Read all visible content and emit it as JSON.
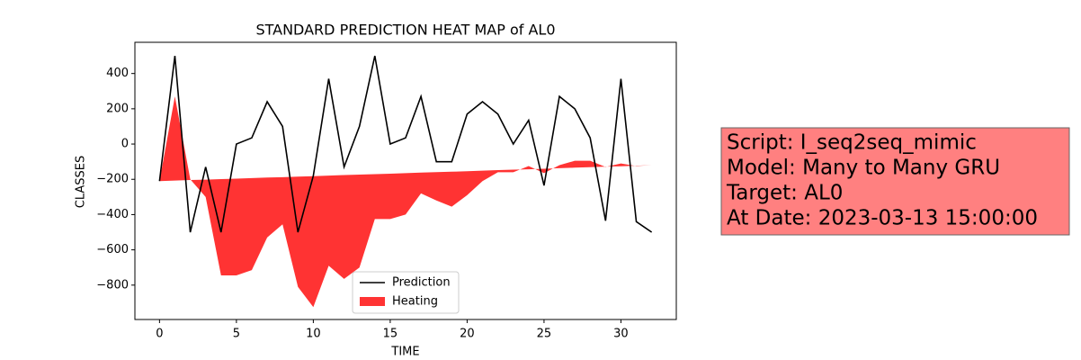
{
  "chart_data": {
    "type": "line-area",
    "title": "STANDARD PREDICTION HEAT MAP of AL0",
    "xlabel": "TIME",
    "ylabel": "CLASSES",
    "x": [
      0,
      1,
      2,
      3,
      4,
      5,
      6,
      7,
      8,
      9,
      10,
      11,
      12,
      13,
      14,
      15,
      16,
      17,
      18,
      19,
      20,
      21,
      22,
      23,
      24,
      25,
      26,
      27,
      28,
      29,
      30,
      31,
      32
    ],
    "series": [
      {
        "name": "Prediction",
        "color": "#000000",
        "kind": "line",
        "values": [
          -210,
          500,
          -500,
          -130,
          -500,
          0,
          35,
          240,
          100,
          -500,
          -180,
          370,
          -130,
          100,
          500,
          0,
          35,
          270,
          -100,
          -100,
          170,
          240,
          170,
          0,
          135,
          -235,
          270,
          200,
          35,
          -435,
          370,
          -440,
          -500
        ]
      },
      {
        "name": "Heating",
        "color": "#ff0000",
        "kind": "area",
        "values": [
          -210,
          270,
          -200,
          -300,
          -745,
          -745,
          -715,
          -530,
          -455,
          -810,
          -925,
          -690,
          -765,
          -700,
          -425,
          -425,
          -400,
          -280,
          -320,
          -355,
          -290,
          -210,
          -160,
          -160,
          -125,
          -165,
          -120,
          -95,
          -95,
          -130,
          -110,
          -125,
          -120
        ],
        "baseline": [
          -210,
          -207,
          -204,
          -202,
          -199,
          -196,
          -193,
          -190,
          -188,
          -185,
          -182,
          -179,
          -176,
          -173,
          -171,
          -168,
          -165,
          -162,
          -159,
          -157,
          -154,
          -151,
          -148,
          -145,
          -143,
          -140,
          -137,
          -134,
          -131,
          -128,
          -126,
          -123,
          -120
        ]
      }
    ],
    "xlim": [
      -1.6,
      33.6
    ],
    "xticks": [
      0,
      5,
      10,
      15,
      20,
      25,
      30
    ],
    "ylim": [
      -995,
      577
    ],
    "yticks": [
      {
        "value": -800,
        "label": "−800"
      },
      {
        "value": -600,
        "label": "−600"
      },
      {
        "value": -400,
        "label": "−400"
      },
      {
        "value": -200,
        "label": "−200"
      },
      0,
      200,
      400
    ],
    "legend": "lower center",
    "annotation_lines": [
      "Script: I_seq2seq_mimic",
      "Model: Many to Many GRU",
      "Target: AL0",
      "At Date: 2023-03-13 15:00:00"
    ],
    "annotation_color": "#ff8080"
  }
}
